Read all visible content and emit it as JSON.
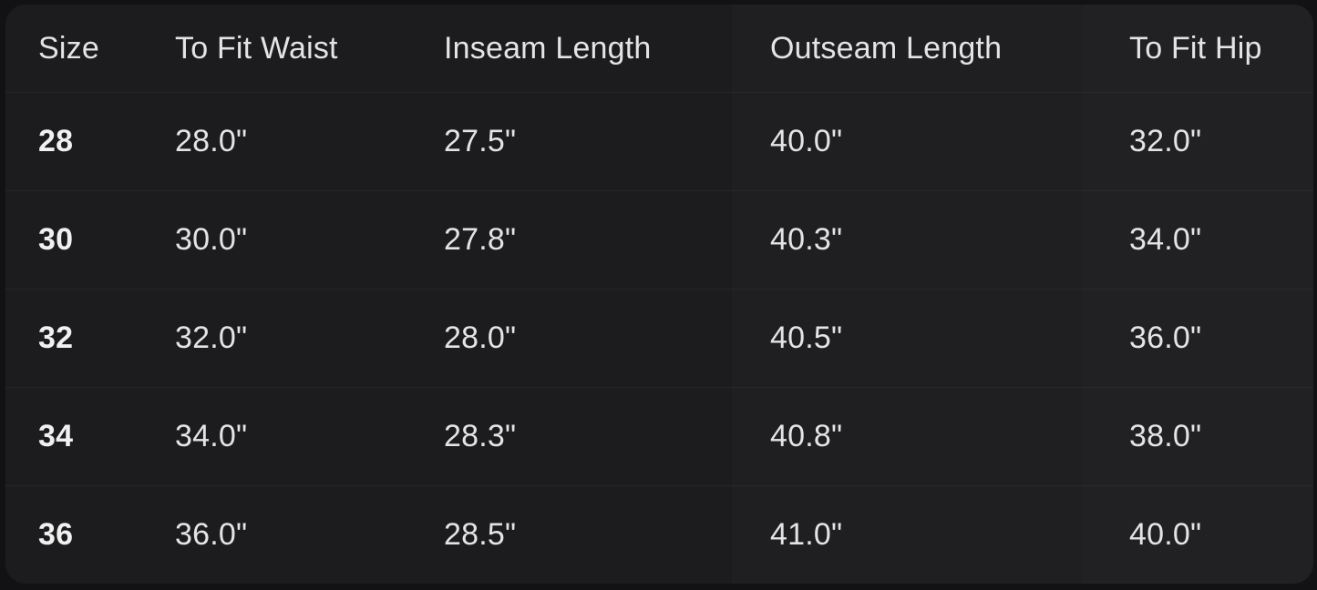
{
  "colors": {
    "page_bg": "#121214",
    "card_bg": "#1c1c1e",
    "text": "#e4e4e6",
    "text_bold": "#f0f0f0"
  },
  "size_chart": {
    "header": {
      "size": "Size",
      "waist": "To Fit Waist",
      "inseam": "Inseam Length",
      "outseam": "Outseam Length",
      "hip": "To Fit Hip"
    },
    "rows": [
      {
        "size": "28",
        "waist": "28.0\"",
        "inseam": "27.5\"",
        "outseam": "40.0\"",
        "hip": "32.0\""
      },
      {
        "size": "30",
        "waist": "30.0\"",
        "inseam": "27.8\"",
        "outseam": "40.3\"",
        "hip": "34.0\""
      },
      {
        "size": "32",
        "waist": "32.0\"",
        "inseam": "28.0\"",
        "outseam": "40.5\"",
        "hip": "36.0\""
      },
      {
        "size": "34",
        "waist": "34.0\"",
        "inseam": "28.3\"",
        "outseam": "40.8\"",
        "hip": "38.0\""
      },
      {
        "size": "36",
        "waist": "36.0\"",
        "inseam": "28.5\"",
        "outseam": "41.0\"",
        "hip": "40.0\""
      }
    ]
  }
}
